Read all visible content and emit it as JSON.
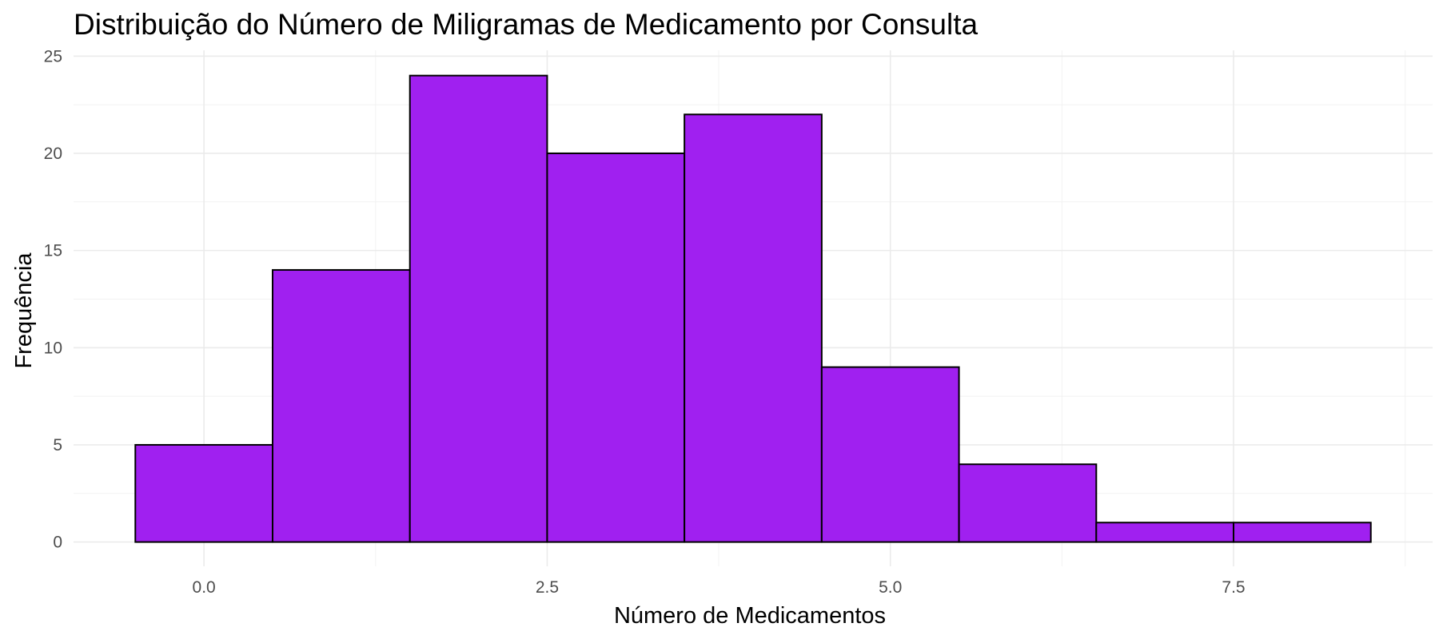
{
  "chart_data": {
    "type": "bar",
    "title": "Distribuição do Número de Miligramas de Medicamento por Consulta",
    "xlabel": "Número de Medicamentos",
    "ylabel": "Frequência",
    "bar_color": "#A020F0",
    "bar_border_color": "#000000",
    "bins": [
      {
        "x_start": -0.5,
        "x_end": 0.5,
        "value": 5
      },
      {
        "x_start": 0.5,
        "x_end": 1.5,
        "value": 14
      },
      {
        "x_start": 1.5,
        "x_end": 2.5,
        "value": 24
      },
      {
        "x_start": 2.5,
        "x_end": 3.5,
        "value": 20
      },
      {
        "x_start": 3.5,
        "x_end": 4.5,
        "value": 22
      },
      {
        "x_start": 4.5,
        "x_end": 5.5,
        "value": 9
      },
      {
        "x_start": 5.5,
        "x_end": 6.5,
        "value": 4
      },
      {
        "x_start": 6.5,
        "x_end": 7.5,
        "value": 1
      },
      {
        "x_start": 7.5,
        "x_end": 8.5,
        "value": 1
      }
    ],
    "xlim": [
      -0.95,
      8.95
    ],
    "ylim": [
      -1.25,
      25.3
    ],
    "x_ticks": [
      0.0,
      2.5,
      5.0,
      7.5
    ],
    "x_tick_labels": [
      "0.0",
      "2.5",
      "5.0",
      "7.5"
    ],
    "x_minor_ticks": [
      1.25,
      3.75,
      6.25,
      8.75
    ],
    "y_ticks": [
      0,
      5,
      10,
      15,
      20,
      25
    ],
    "y_tick_labels": [
      "0",
      "5",
      "10",
      "15",
      "20",
      "25"
    ],
    "y_minor_ticks": [
      2.5,
      7.5,
      12.5,
      17.5,
      22.5
    ],
    "grid": true,
    "legend": "none"
  }
}
